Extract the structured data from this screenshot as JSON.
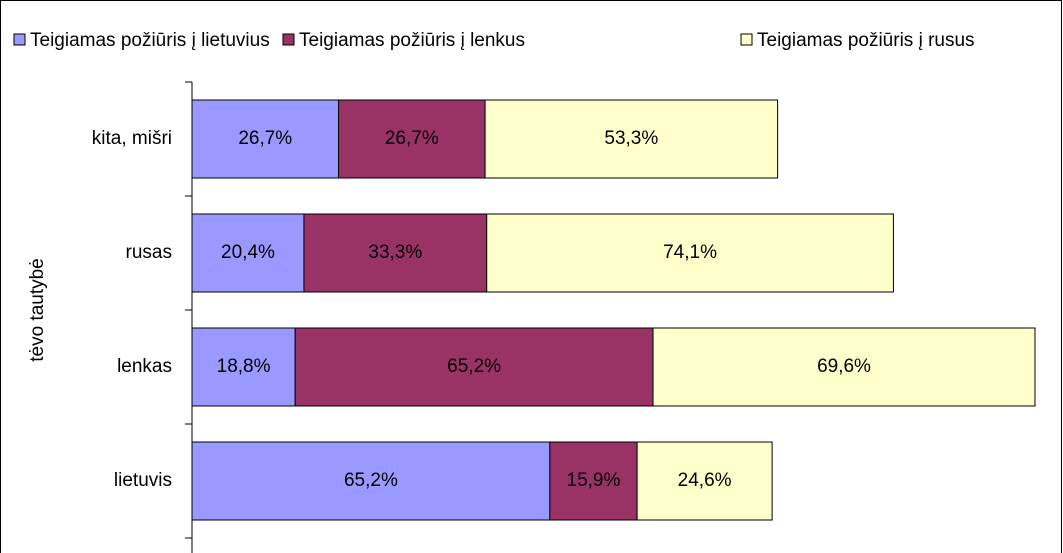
{
  "chart_data": {
    "type": "stacked-bar-horizontal",
    "y_label": "tėvo tautybė",
    "categories": [
      "kita, mišri",
      "rusas",
      "lenkas",
      "lietuvis"
    ],
    "series": [
      {
        "name": "Teigiamas požiūris į lietuvius",
        "color": "#9999ff",
        "values": [
          26.7,
          20.4,
          18.8,
          65.2
        ],
        "value_labels": [
          "26,7%",
          "20,4%",
          "18,8%",
          "65,2%"
        ]
      },
      {
        "name": "Teigiamas požiūris į lenkus",
        "color": "#993366",
        "values": [
          26.7,
          33.3,
          65.2,
          15.9
        ],
        "value_labels": [
          "26,7%",
          "33,3%",
          "65,2%",
          "15,9%"
        ]
      },
      {
        "name": "Teigiamas požiūris į rusus",
        "color": "#ffffcc",
        "values": [
          53.3,
          74.1,
          69.6,
          24.6
        ],
        "value_labels": [
          "53,3%",
          "74,1%",
          "69,6%",
          "24,6%"
        ]
      }
    ],
    "legend": "top"
  }
}
